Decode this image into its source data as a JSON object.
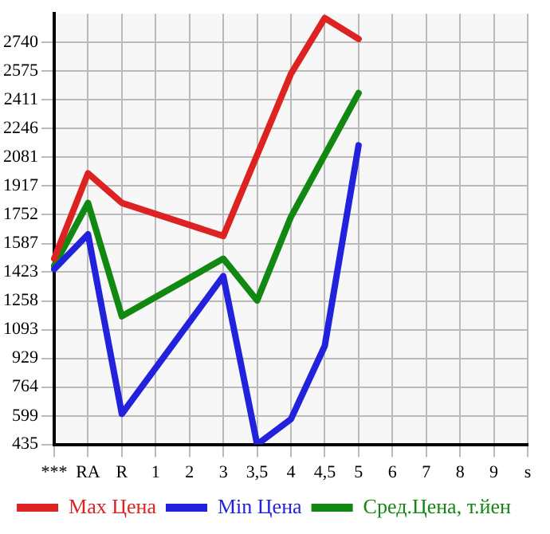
{
  "chart_data": {
    "type": "line",
    "categories": [
      "***",
      "RA",
      "R",
      "1",
      "2",
      "3",
      "3,5",
      "4",
      "4,5",
      "5",
      "6",
      "7",
      "8",
      "9",
      "s"
    ],
    "series": [
      {
        "name": "Max Цена",
        "color": "#dd2222",
        "values": [
          1500,
          1990,
          1820,
          null,
          null,
          1630,
          null,
          2560,
          2880,
          2760,
          null,
          null,
          null,
          null,
          null
        ]
      },
      {
        "name": "Min Цена",
        "color": "#2222dd",
        "values": [
          1440,
          1640,
          610,
          null,
          null,
          1400,
          435,
          580,
          1000,
          2150,
          null,
          null,
          null,
          null,
          null
        ]
      },
      {
        "name": "Сред.Цена, т.йен",
        "color": "#118811",
        "values": [
          1460,
          1820,
          1170,
          null,
          null,
          1500,
          1260,
          1740,
          null,
          2450,
          null,
          null,
          null,
          null,
          null
        ]
      }
    ],
    "ylim": [
      435,
      2905
    ],
    "yticks": [
      435,
      599,
      764,
      929,
      1093,
      1258,
      1423,
      1587,
      1752,
      1917,
      2081,
      2246,
      2411,
      2575,
      2740
    ],
    "grid": true,
    "legend": "bottom",
    "marker": "none",
    "line_style": "solid"
  }
}
